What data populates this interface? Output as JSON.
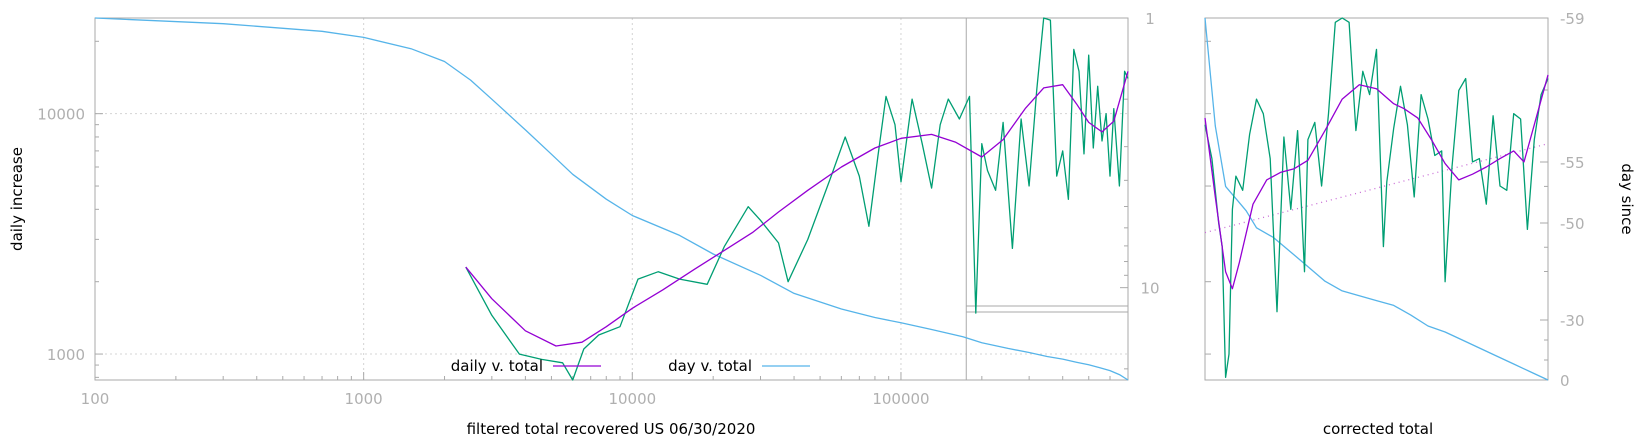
{
  "colors": {
    "daily_smooth": "#9400d3",
    "daily_raw": "#009e73",
    "day_total": "#56b4e9",
    "axis": "#aaaaaa",
    "tick_text": "#b0b0b0",
    "grid": "#d4d4d4",
    "label_text": "#000000"
  },
  "chart_data": [
    {
      "type": "line",
      "xlabel": "filtered total recovered US 06/30/2020",
      "ylabel": "daily increase",
      "y2label": "",
      "x_scale": "log",
      "y_scale": "log",
      "y2_scale": "log",
      "y2_reversed": true,
      "xlim": [
        100,
        700000
      ],
      "ylim": [
        780,
        25000
      ],
      "y2lim": [
        1,
        22
      ],
      "x_ticks": [
        100,
        1000,
        10000,
        100000
      ],
      "x_tick_labels": [
        "100",
        "1000",
        "10000",
        "100000"
      ],
      "y_ticks": [
        1000,
        10000
      ],
      "y_tick_labels": [
        "1000",
        "10000"
      ],
      "y2_ticks": [
        1,
        10
      ],
      "y2_tick_labels": [
        "1",
        "10"
      ],
      "grid": true,
      "legend": "bottom-center",
      "vertical_marker_x": 175000,
      "series": [
        {
          "name": "daily v. total",
          "axis": "y",
          "color_key": "daily_smooth",
          "x": [
            2400,
            3000,
            4000,
            5200,
            6500,
            8000,
            10000,
            13000,
            17000,
            22000,
            28000,
            35000,
            45000,
            60000,
            80000,
            100000,
            130000,
            160000,
            200000,
            240000,
            290000,
            340000,
            400000,
            450000,
            500000,
            560000,
            620000,
            700000
          ],
          "y": [
            2300,
            1700,
            1250,
            1080,
            1120,
            1300,
            1550,
            1850,
            2250,
            2700,
            3200,
            3900,
            4800,
            6000,
            7200,
            7900,
            8200,
            7600,
            6600,
            7800,
            10500,
            12800,
            13200,
            11000,
            9200,
            8400,
            9300,
            15000
          ]
        },
        {
          "name": "",
          "axis": "y",
          "color_key": "daily_raw",
          "x": [
            2400,
            3000,
            3800,
            4600,
            5500,
            6000,
            6600,
            7500,
            9000,
            10500,
            12500,
            15000,
            19000,
            22000,
            27000,
            30000,
            35000,
            38000,
            45000,
            55000,
            62000,
            70000,
            76000,
            82000,
            88000,
            95000,
            100000,
            110000,
            120000,
            130000,
            140000,
            150000,
            165000,
            180000,
            190000,
            200000,
            210000,
            225000,
            240000,
            260000,
            280000,
            300000,
            320000,
            340000,
            360000,
            380000,
            400000,
            420000,
            440000,
            460000,
            480000,
            500000,
            520000,
            540000,
            560000,
            580000,
            600000,
            620000,
            650000,
            680000,
            700000
          ],
          "y": [
            2300,
            1450,
            1000,
            950,
            920,
            780,
            1050,
            1200,
            1300,
            2050,
            2200,
            2050,
            1950,
            2800,
            4100,
            3600,
            2900,
            2000,
            3000,
            5500,
            8000,
            5500,
            3400,
            6600,
            11800,
            9000,
            5200,
            11500,
            7500,
            4900,
            9000,
            11500,
            9500,
            11800,
            1480,
            7500,
            5800,
            4800,
            9200,
            2750,
            9500,
            5000,
            12500,
            25000,
            24500,
            5500,
            7000,
            4400,
            18500,
            15000,
            6800,
            17500,
            7200,
            13000,
            7700,
            10000,
            5500,
            10500,
            5000,
            15000,
            14000
          ]
        },
        {
          "name": "day v. total",
          "axis": "y2",
          "color_key": "day_total",
          "x": [
            100,
            300,
            700,
            1000,
            1500,
            2000,
            2500,
            3000,
            4000,
            5000,
            6000,
            8000,
            10000,
            15000,
            20000,
            30000,
            40000,
            60000,
            80000,
            100000,
            130000,
            170000,
            200000,
            250000,
            300000,
            350000,
            400000,
            450000,
            500000,
            550000,
            600000,
            650000,
            700000
          ],
          "y2": [
            1.0,
            1.05,
            1.12,
            1.18,
            1.3,
            1.45,
            1.7,
            2.0,
            2.6,
            3.2,
            3.8,
            4.7,
            5.4,
            6.4,
            7.5,
            9.0,
            10.5,
            12.0,
            12.9,
            13.5,
            14.3,
            15.2,
            16.0,
            16.8,
            17.4,
            18.0,
            18.4,
            18.9,
            19.3,
            19.8,
            20.3,
            21.0,
            22.0
          ]
        }
      ]
    },
    {
      "type": "line",
      "xlabel": "corrected total",
      "ylabel": "",
      "y2label": "day since",
      "x_scale": "linear",
      "y_scale": "log",
      "ylim": [
        780,
        25000
      ],
      "y2lim": [
        -59,
        0
      ],
      "y2_ticks": [
        -59,
        -55,
        -50,
        -30,
        0
      ],
      "y2_tick_labels": [
        "-59",
        "-55",
        "-50",
        "-30",
        "0"
      ],
      "grid": false,
      "series": [
        {
          "name": "",
          "axis": "y",
          "color_key": "daily_smooth",
          "x": [
            0,
            3,
            6,
            8,
            10,
            14,
            18,
            22,
            26,
            30,
            35,
            40,
            45,
            50,
            55,
            58,
            62,
            66,
            70,
            74,
            78,
            82,
            86,
            90,
            93,
            96,
            100
          ],
          "y": [
            9600,
            4500,
            2200,
            1870,
            2400,
            4200,
            5300,
            5700,
            5900,
            6400,
            8500,
            11500,
            13200,
            12700,
            11000,
            10500,
            9600,
            7800,
            6200,
            5300,
            5600,
            6000,
            6500,
            7000,
            6300,
            9000,
            14500
          ]
        },
        {
          "name": "",
          "axis": "y",
          "color_key": "daily_raw",
          "x": [
            0,
            2,
            4,
            5,
            6,
            7,
            8,
            9,
            11,
            13,
            15,
            17,
            19,
            21,
            23,
            25,
            27,
            28,
            29,
            30,
            32,
            34,
            36,
            38,
            40,
            42,
            44,
            46,
            48,
            50,
            52,
            53,
            55,
            57,
            59,
            61,
            63,
            65,
            67,
            69,
            70,
            72,
            74,
            76,
            78,
            80,
            82,
            84,
            86,
            88,
            90,
            92,
            94,
            96,
            98,
            100
          ],
          "y": [
            9000,
            6500,
            3500,
            2800,
            800,
            1000,
            4000,
            5500,
            4800,
            8200,
            11500,
            10000,
            6500,
            1500,
            8000,
            4000,
            8500,
            4500,
            2200,
            7800,
            9200,
            5000,
            10000,
            24000,
            25000,
            24000,
            8500,
            15000,
            12000,
            18500,
            2800,
            5200,
            8700,
            13000,
            9000,
            4500,
            12000,
            9500,
            6700,
            7000,
            2000,
            6000,
            12500,
            14000,
            6300,
            6500,
            4200,
            9800,
            5000,
            4800,
            10000,
            9500,
            3300,
            7800,
            12000,
            14000
          ]
        },
        {
          "name": "",
          "axis": "y",
          "color_key": "daily_raw",
          "line_style": "dotted",
          "note": "",
          "x": [
            0,
            100
          ],
          "y": [
            3200,
            7500
          ]
        },
        {
          "name": "",
          "axis": "y2",
          "color_key": "day_total",
          "x": [
            0,
            3,
            6,
            9,
            12,
            15,
            20,
            25,
            30,
            35,
            40,
            45,
            50,
            55,
            60,
            65,
            70,
            75,
            80,
            85,
            90,
            95,
            100
          ],
          "y2": [
            -59,
            -56,
            -53,
            -52,
            -51,
            -49,
            -47,
            -44,
            -41,
            -38,
            -36,
            -35,
            -34,
            -33,
            -31,
            -27,
            -24,
            -20,
            -16,
            -12,
            -8,
            -4,
            0
          ]
        }
      ]
    }
  ]
}
